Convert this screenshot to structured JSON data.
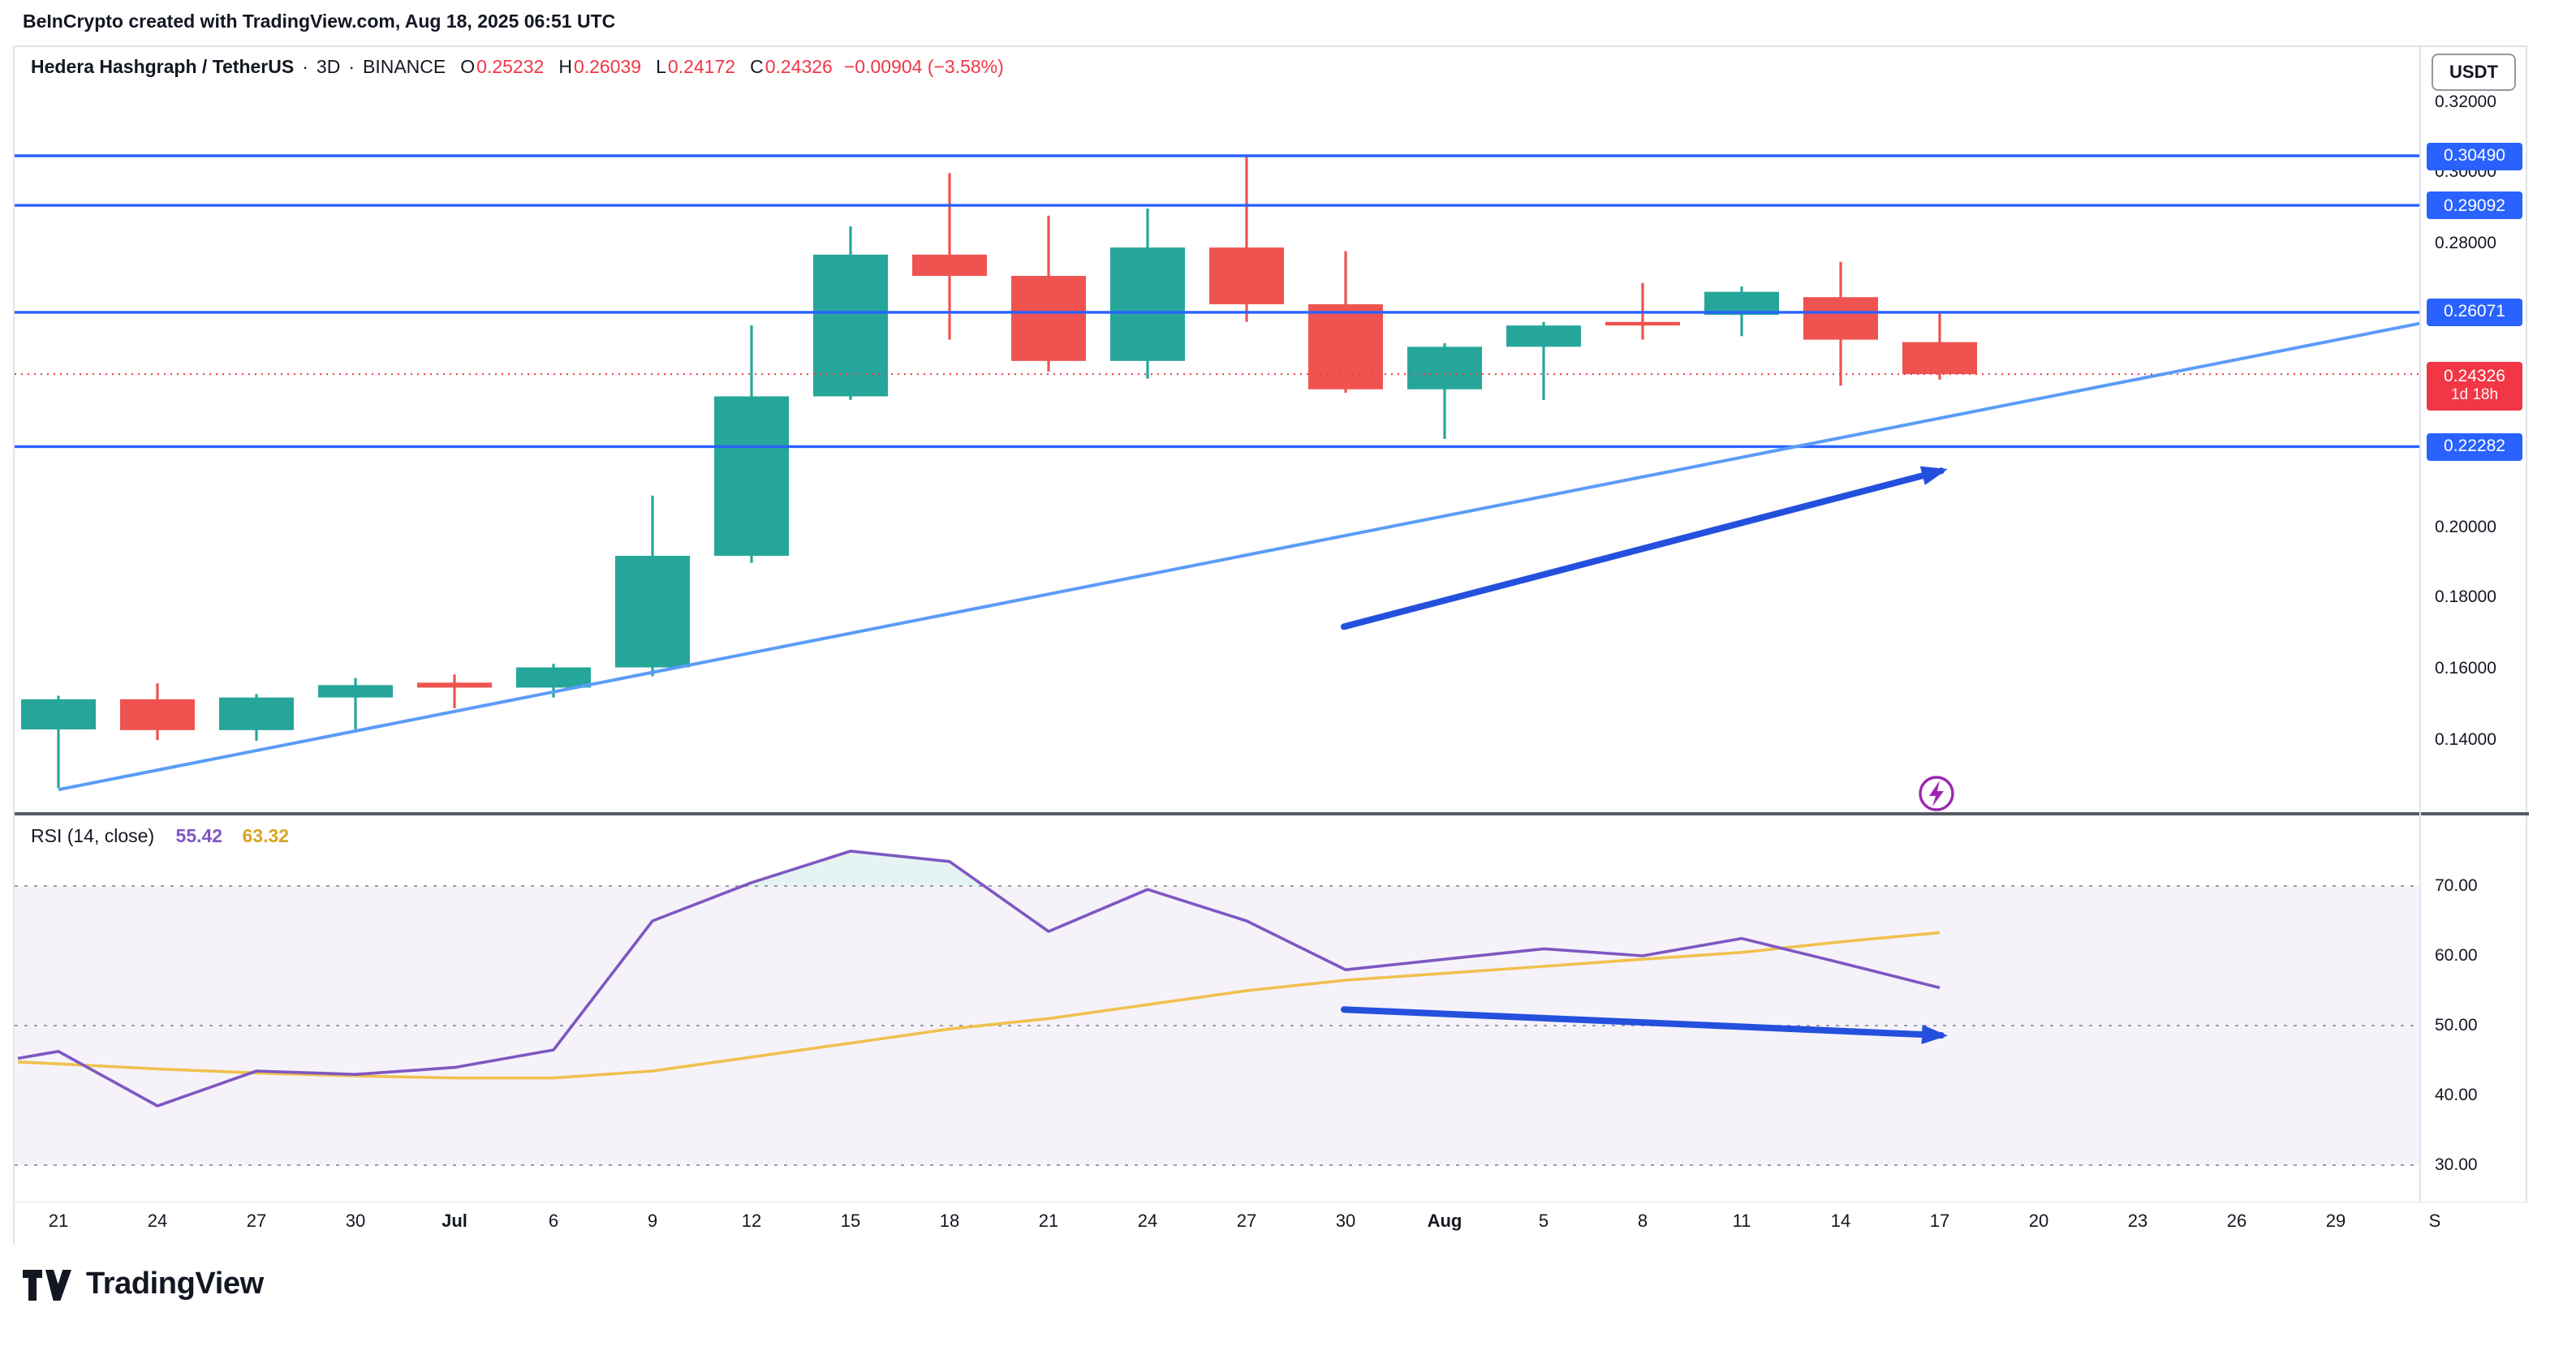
{
  "credit": "BeInCrypto created with TradingView.com, Aug 18, 2025 06:51 UTC",
  "header": {
    "symbol": "Hedera Hashgraph / TetherUS",
    "separator": "·",
    "interval": "3D",
    "exchange": "BINANCE",
    "ohlc": {
      "o_label": "O",
      "o": "0.25232",
      "h_label": "H",
      "h": "0.26039",
      "l_label": "L",
      "l": "0.24172",
      "c_label": "C",
      "c": "0.24326",
      "change": "−0.00904 (−3.58%)"
    },
    "currency_button": "USDT"
  },
  "rsi_legend": {
    "label": "RSI (14, close)",
    "value": "55.42",
    "ma_value": "63.32"
  },
  "footer": {
    "brand": "TradingView"
  },
  "colors": {
    "up": "#26a69a",
    "down": "#ef5350",
    "accent_red": "#f23645",
    "level_blue": "#2962ff",
    "trend_blue": "#5b9cf6",
    "arrow_blue": "#2450dd",
    "rsi_purple": "#7e57c2",
    "rsi_ma_yellow": "#f0c14e",
    "rsi_band_fill": "rgba(126,87,194,0.08)",
    "overbought_fill": "rgba(38,166,154,0.12)",
    "band_dash": "#9a9da6",
    "marker_purple": "#9c27b0",
    "separator_dark": "#555b66",
    "axis_line": "#e0e3eb",
    "text": "#131722"
  },
  "chart_data": {
    "type": "candlestick",
    "title": "Hedera Hashgraph / TetherUS · 3D · BINANCE",
    "symbol": "HBAR/USDT",
    "interval": "3D",
    "ylim": [
      0.12,
      0.3355
    ],
    "x_labels": [
      "21",
      "24",
      "27",
      "30",
      "Jul",
      "6",
      "9",
      "12",
      "15",
      "18",
      "21",
      "24",
      "27",
      "30",
      "Aug",
      "5",
      "8",
      "11",
      "14",
      "17",
      "20",
      "23",
      "26",
      "29",
      "S"
    ],
    "bold_x_labels": [
      "Jul",
      "Aug"
    ],
    "price_ticks": [
      {
        "value": 0.32,
        "label": "0.32000"
      },
      {
        "value": 0.3,
        "label": "0.30000"
      },
      {
        "value": 0.28,
        "label": "0.28000"
      },
      {
        "value": 0.22,
        "label": "0.22000"
      },
      {
        "value": 0.2,
        "label": "0.20000"
      },
      {
        "value": 0.18,
        "label": "0.18000"
      },
      {
        "value": 0.16,
        "label": "0.16000"
      },
      {
        "value": 0.14,
        "label": "0.14000"
      }
    ],
    "candles": [
      {
        "date": "Jun 21",
        "o": 0.143,
        "h": 0.1525,
        "l": 0.1265,
        "c": 0.1515
      },
      {
        "date": "Jun 24",
        "o": 0.1515,
        "h": 0.156,
        "l": 0.14,
        "c": 0.1428
      },
      {
        "date": "Jun 27",
        "o": 0.1428,
        "h": 0.153,
        "l": 0.1398,
        "c": 0.152
      },
      {
        "date": "Jun 30",
        "o": 0.152,
        "h": 0.1575,
        "l": 0.143,
        "c": 0.1555
      },
      {
        "date": "Jul 3",
        "o": 0.1562,
        "h": 0.1585,
        "l": 0.149,
        "c": 0.1548
      },
      {
        "date": "Jul 6",
        "o": 0.1548,
        "h": 0.1615,
        "l": 0.152,
        "c": 0.1605
      },
      {
        "date": "Jul 9",
        "o": 0.1605,
        "h": 0.209,
        "l": 0.158,
        "c": 0.192
      },
      {
        "date": "Jul 12",
        "o": 0.192,
        "h": 0.257,
        "l": 0.19,
        "c": 0.237
      },
      {
        "date": "Jul 15",
        "o": 0.237,
        "h": 0.285,
        "l": 0.236,
        "c": 0.277
      },
      {
        "date": "Jul 18",
        "o": 0.277,
        "h": 0.3,
        "l": 0.253,
        "c": 0.271
      },
      {
        "date": "Jul 21",
        "o": 0.271,
        "h": 0.288,
        "l": 0.244,
        "c": 0.247
      },
      {
        "date": "Jul 24",
        "o": 0.247,
        "h": 0.29,
        "l": 0.242,
        "c": 0.279
      },
      {
        "date": "Jul 27",
        "o": 0.279,
        "h": 0.305,
        "l": 0.258,
        "c": 0.263
      },
      {
        "date": "Jul 30",
        "o": 0.263,
        "h": 0.278,
        "l": 0.238,
        "c": 0.239
      },
      {
        "date": "Aug 2",
        "o": 0.239,
        "h": 0.252,
        "l": 0.225,
        "c": 0.251
      },
      {
        "date": "Aug 5",
        "o": 0.251,
        "h": 0.258,
        "l": 0.236,
        "c": 0.257
      },
      {
        "date": "Aug 8",
        "o": 0.258,
        "h": 0.269,
        "l": 0.253,
        "c": 0.257
      },
      {
        "date": "Aug 11",
        "o": 0.26,
        "h": 0.268,
        "l": 0.254,
        "c": 0.2665
      },
      {
        "date": "Aug 14",
        "o": 0.265,
        "h": 0.275,
        "l": 0.24,
        "c": 0.253
      },
      {
        "date": "Aug 17",
        "o": 0.25232,
        "h": 0.26039,
        "l": 0.24172,
        "c": 0.24326
      }
    ],
    "levels": [
      {
        "value": 0.3049,
        "label": "0.30490"
      },
      {
        "value": 0.29092,
        "label": "0.29092"
      },
      {
        "value": 0.26071,
        "label": "0.26071"
      },
      {
        "value": 0.22282,
        "label": "0.22282"
      }
    ],
    "last_price": {
      "value": 0.24326,
      "label": "0.24326",
      "countdown": "1d 18h"
    },
    "trendline": {
      "x1": 27,
      "price1": 0.126,
      "x2": 1482,
      "price2": 0.2576
    },
    "arrows": [
      {
        "pane": "price",
        "x1": 819,
        "value1": 0.172,
        "x2": 1187,
        "value2": 0.216
      },
      {
        "pane": "rsi",
        "x1": 819,
        "value1": 52.3,
        "x2": 1187,
        "value2": 48.6
      }
    ],
    "marker": {
      "type": "flash",
      "x": 1184,
      "price": 0.1249
    },
    "rsi": {
      "period_source": "14, close",
      "current": 55.42,
      "ma_current": 63.32,
      "ylim": [
        25,
        80
      ],
      "bands": [
        70,
        50,
        30
      ],
      "overbought_threshold": 70,
      "lead": 45.3,
      "values": [
        46.3,
        38.5,
        43.5,
        43.0,
        44.0,
        46.5,
        65.0,
        70.5,
        75.0,
        73.5,
        63.5,
        69.5,
        65.0,
        58.0,
        59.5,
        61.0,
        60.0,
        62.5,
        59.0,
        55.42
      ],
      "ma_lead": 44.8,
      "ma_values": [
        44.5,
        43.8,
        43.2,
        42.8,
        42.5,
        42.5,
        43.5,
        45.5,
        47.5,
        49.5,
        51.0,
        53.0,
        55.0,
        56.5,
        57.5,
        58.5,
        59.5,
        60.5,
        62.0,
        63.32
      ],
      "y_ticks": [
        {
          "value": 70,
          "label": "70.00"
        },
        {
          "value": 60,
          "label": "60.00"
        },
        {
          "value": 50,
          "label": "50.00"
        },
        {
          "value": 40,
          "label": "40.00"
        },
        {
          "value": 30,
          "label": "30.00"
        }
      ]
    }
  }
}
